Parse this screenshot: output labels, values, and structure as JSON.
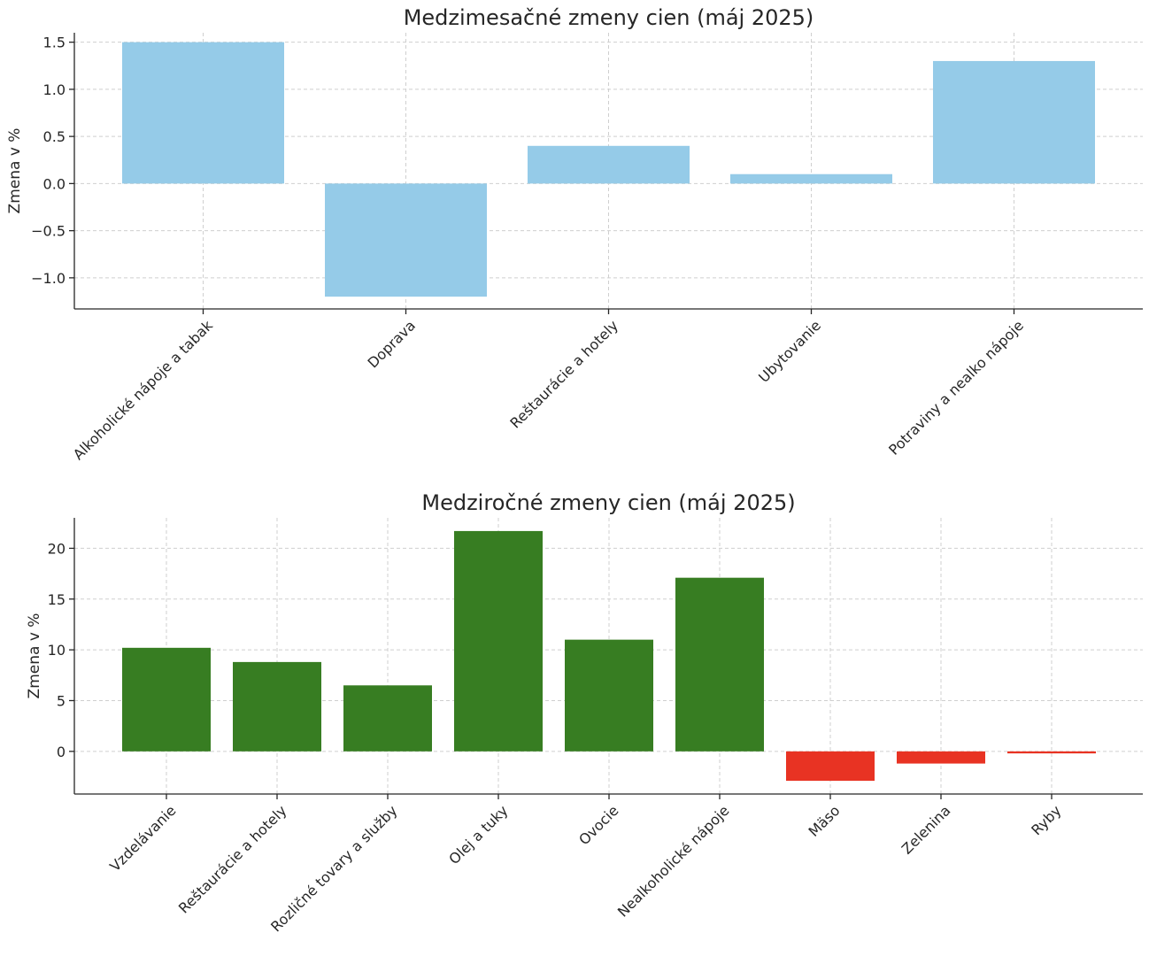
{
  "chart_data": [
    {
      "type": "bar",
      "title": "Medzimesačné zmeny cien (máj 2025)",
      "xlabel": "",
      "ylabel": "Zmena v %",
      "categories": [
        "Alkoholické nápoje a tabak",
        "Doprava",
        "Reštaurácie a hotely",
        "Ubytovanie",
        "Potraviny a nealko nápoje"
      ],
      "values": [
        1.5,
        -1.2,
        0.4,
        0.1,
        1.3
      ],
      "ylim": [
        -1.33,
        1.6
      ],
      "yticks": [
        -1.0,
        -0.5,
        0.0,
        0.5,
        1.0,
        1.5
      ],
      "ytick_labels": [
        "−1.0",
        "−0.5",
        "0.0",
        "0.5",
        "1.0",
        "1.5"
      ],
      "grid": true,
      "colors": {
        "bar": "#95cbe8"
      }
    },
    {
      "type": "bar",
      "title": "Medziročné zmeny cien (máj 2025)",
      "xlabel": "",
      "ylabel": "Zmena v %",
      "categories": [
        "Vzdelávanie",
        "Reštaurácie a hotely",
        "Rozličné tovary a služby",
        "Olej a tuky",
        "Ovocie",
        "Nealkoholické nápoje",
        "Mäso",
        "Zelenina",
        "Ryby"
      ],
      "values": [
        10.2,
        8.8,
        6.5,
        21.7,
        11.0,
        17.1,
        -2.9,
        -1.2,
        -0.2
      ],
      "ylim": [
        -4.2,
        23.0
      ],
      "yticks": [
        0,
        5,
        10,
        15,
        20
      ],
      "ytick_labels": [
        "0",
        "5",
        "10",
        "15",
        "20"
      ],
      "grid": true,
      "colors": {
        "positive": "#377d22",
        "negative": "#e83323"
      }
    }
  ]
}
